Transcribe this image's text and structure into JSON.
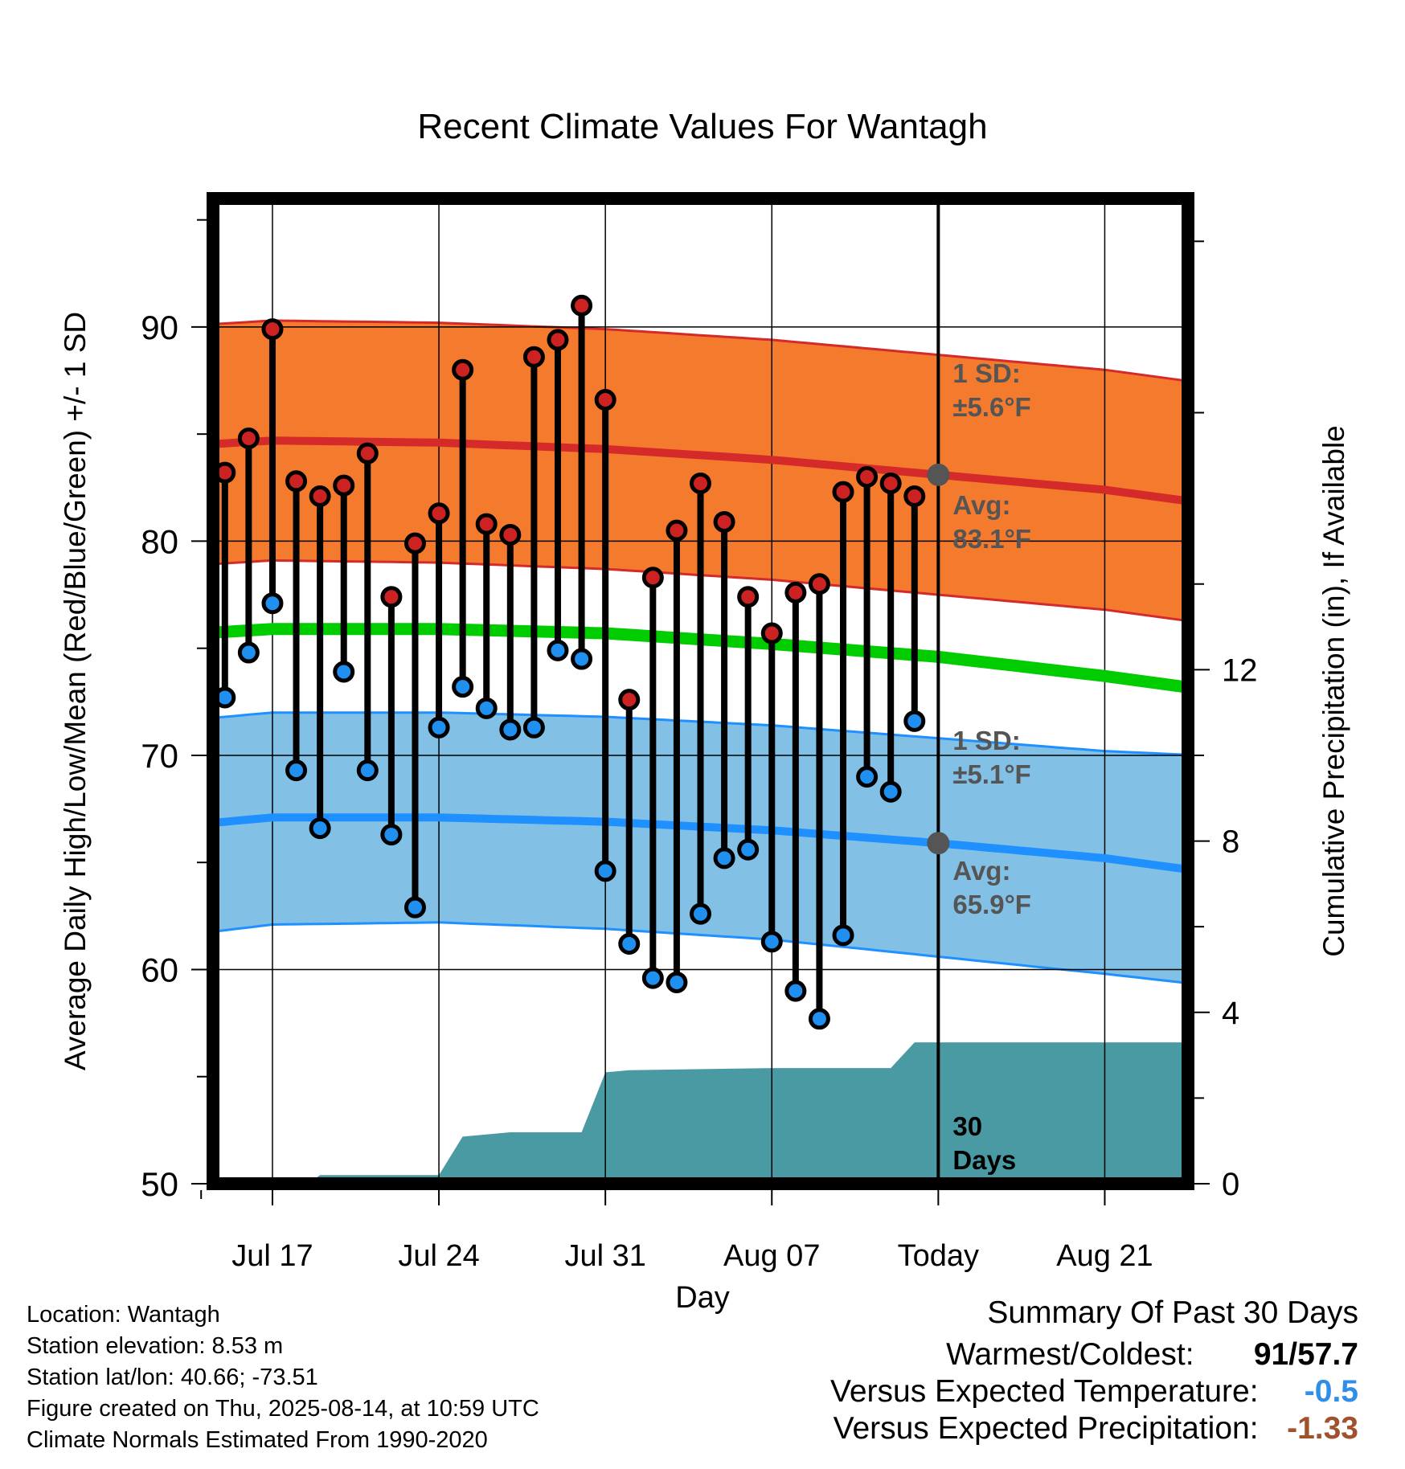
{
  "chart_data": {
    "type": "line",
    "title": "Recent Climate Values For Wantagh",
    "xlabel": "Day",
    "ylabel": "Average Daily High/Low/Mean (Red/Blue/Green) +/- 1 SD",
    "y2label": "Cumulative Precipitation (in), If Available",
    "ylim": [
      50,
      96
    ],
    "y2lim": [
      0,
      23
    ],
    "xlim_days": [
      -30.5,
      10.5
    ],
    "x_ticks": [
      {
        "day": -28,
        "label": "Jul 17"
      },
      {
        "day": -21,
        "label": "Jul 24"
      },
      {
        "day": -14,
        "label": "Jul 31"
      },
      {
        "day": -7,
        "label": "Aug 07"
      },
      {
        "day": 0,
        "label": "Today"
      },
      {
        "day": 7,
        "label": "Aug 21"
      }
    ],
    "y_ticks": [
      50,
      60,
      70,
      80,
      90
    ],
    "y2_ticks": [
      0,
      4,
      8,
      12
    ],
    "grid": true,
    "today_day": 0,
    "daily": {
      "days": [
        -30,
        -29,
        -28,
        -27,
        -26,
        -25,
        -24,
        -23,
        -22,
        -21,
        -20,
        -19,
        -18,
        -17,
        -16,
        -15,
        -14,
        -13,
        -12,
        -11,
        -10,
        -9,
        -8,
        -7,
        -6,
        -5,
        -4,
        -3,
        -2,
        -1
      ],
      "high": [
        83.2,
        84.8,
        89.9,
        82.8,
        82.1,
        82.6,
        84.1,
        77.4,
        79.9,
        81.3,
        88.0,
        80.8,
        80.3,
        88.6,
        89.4,
        91.0,
        86.6,
        72.6,
        78.3,
        80.5,
        82.7,
        80.9,
        77.4,
        75.7,
        77.6,
        78.0,
        82.3,
        83.0,
        82.7,
        82.1
      ],
      "low": [
        72.7,
        74.8,
        77.1,
        69.3,
        66.6,
        73.9,
        69.3,
        66.3,
        62.9,
        71.3,
        73.2,
        72.2,
        71.2,
        71.3,
        74.9,
        74.5,
        64.6,
        61.2,
        59.6,
        59.4,
        62.6,
        65.2,
        65.6,
        61.3,
        59.0,
        57.7,
        61.6,
        69.0,
        68.3,
        71.6
      ]
    },
    "normals": {
      "days": [
        -31,
        -28,
        -21,
        -14,
        -7,
        0,
        7,
        11
      ],
      "high_avg": [
        84.5,
        84.7,
        84.6,
        84.3,
        83.8,
        83.1,
        82.4,
        81.8
      ],
      "high_sd": 5.6,
      "low_avg": [
        66.8,
        67.1,
        67.1,
        66.9,
        66.5,
        65.9,
        65.2,
        64.6
      ],
      "low_sd_upper": [
        71.7,
        72.0,
        72.0,
        71.8,
        71.4,
        70.8,
        70.2,
        70.0
      ],
      "low_sd_lower": [
        61.7,
        62.1,
        62.2,
        61.9,
        61.4,
        60.6,
        59.8,
        59.3
      ],
      "mean_avg": [
        75.7,
        75.9,
        75.9,
        75.7,
        75.2,
        74.6,
        73.7,
        73.1
      ]
    },
    "precip": {
      "days": [
        -30.5,
        -26.5,
        -26,
        -21,
        -20,
        -18,
        -15,
        -14,
        -13,
        -7,
        -2,
        -1,
        0,
        10.5
      ],
      "cum": [
        0,
        0,
        0.2,
        0.2,
        1.1,
        1.2,
        1.2,
        2.6,
        2.65,
        2.7,
        2.7,
        3.3,
        3.3,
        3.3
      ]
    },
    "annotations": {
      "high_sd": {
        "line1": "1 SD:",
        "line2": "±5.6°F"
      },
      "high_avg": {
        "line1": "Avg:",
        "line2": "83.1°F"
      },
      "low_sd": {
        "line1": "1 SD:",
        "line2": "±5.1°F"
      },
      "low_avg": {
        "line1": "Avg:",
        "line2": "65.9°F"
      },
      "precip_days": {
        "line1": "30",
        "line2": "Days"
      }
    },
    "today_values": {
      "high_avg": 83.1,
      "low_avg": 65.9
    }
  },
  "info": {
    "location": "Location: Wantagh",
    "elevation": "Station elevation: 8.53 m",
    "latlon": "Station lat/lon: 40.66; -73.51",
    "created": "Figure created on Thu, 2025-08-14, at 10:59 UTC",
    "normals": "Climate Normals Estimated From 1990-2020"
  },
  "summary": {
    "title": "Summary Of Past 30 Days",
    "warmest_label": "Warmest/Coldest:",
    "warmest_value": "91",
    "coldest_value": "57.7",
    "temp_label": "Versus Expected Temperature:",
    "temp_value": "-0.5",
    "precip_label": "Versus Expected Precipitation:",
    "precip_value": "-1.33"
  },
  "colors": {
    "high_band": "#f47a2e",
    "high_line": "#d42a2a",
    "low_band": "#82c0e6",
    "low_line": "#1e90ff",
    "mean_line": "#00cc00",
    "precip": "#4a9aa3",
    "high_marker": "#cc2222",
    "low_marker": "#2090f0",
    "annotation": "#555555",
    "temp_value": "#2f8fe8",
    "precip_value": "#a0522d"
  }
}
